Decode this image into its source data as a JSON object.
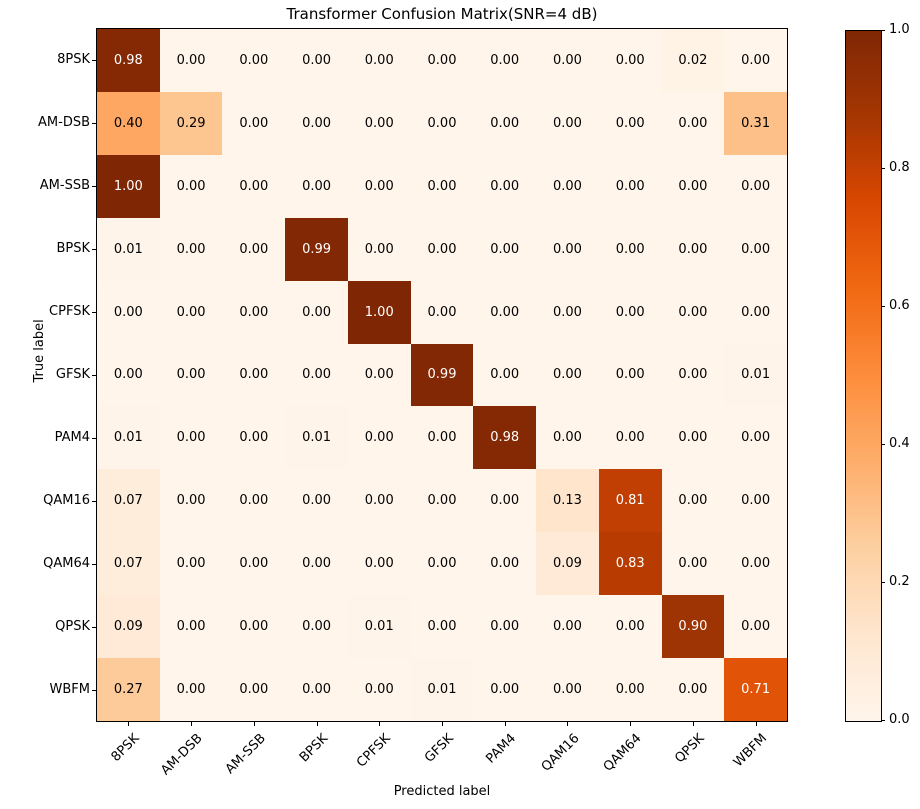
{
  "chart_data": {
    "type": "heatmap",
    "title": "Transformer Confusion Matrix(SNR=4 dB)",
    "xlabel": "Predicted label",
    "ylabel": "True label",
    "categories": [
      "8PSK",
      "AM-DSB",
      "AM-SSB",
      "BPSK",
      "CPFSK",
      "GFSK",
      "PAM4",
      "QAM16",
      "QAM64",
      "QPSK",
      "WBFM"
    ],
    "matrix": [
      [
        0.98,
        0.0,
        0.0,
        0.0,
        0.0,
        0.0,
        0.0,
        0.0,
        0.0,
        0.02,
        0.0
      ],
      [
        0.4,
        0.29,
        0.0,
        0.0,
        0.0,
        0.0,
        0.0,
        0.0,
        0.0,
        0.0,
        0.31
      ],
      [
        1.0,
        0.0,
        0.0,
        0.0,
        0.0,
        0.0,
        0.0,
        0.0,
        0.0,
        0.0,
        0.0
      ],
      [
        0.01,
        0.0,
        0.0,
        0.99,
        0.0,
        0.0,
        0.0,
        0.0,
        0.0,
        0.0,
        0.0
      ],
      [
        0.0,
        0.0,
        0.0,
        0.0,
        1.0,
        0.0,
        0.0,
        0.0,
        0.0,
        0.0,
        0.0
      ],
      [
        0.0,
        0.0,
        0.0,
        0.0,
        0.0,
        0.99,
        0.0,
        0.0,
        0.0,
        0.0,
        0.01
      ],
      [
        0.01,
        0.0,
        0.0,
        0.01,
        0.0,
        0.0,
        0.98,
        0.0,
        0.0,
        0.0,
        0.0
      ],
      [
        0.07,
        0.0,
        0.0,
        0.0,
        0.0,
        0.0,
        0.0,
        0.13,
        0.81,
        0.0,
        0.0
      ],
      [
        0.07,
        0.0,
        0.0,
        0.0,
        0.0,
        0.0,
        0.0,
        0.09,
        0.83,
        0.0,
        0.0
      ],
      [
        0.09,
        0.0,
        0.0,
        0.0,
        0.01,
        0.0,
        0.0,
        0.0,
        0.0,
        0.9,
        0.0
      ],
      [
        0.27,
        0.0,
        0.0,
        0.0,
        0.0,
        0.01,
        0.0,
        0.0,
        0.0,
        0.0,
        0.71
      ]
    ],
    "value_decimals": 2,
    "vmin": 0.0,
    "vmax": 1.0,
    "colormap": "Oranges",
    "colormap_stops": [
      "#fff5eb",
      "#fee6ce",
      "#fdd0a2",
      "#fdae6b",
      "#fd8d3c",
      "#f16913",
      "#d94801",
      "#a63603",
      "#7f2704"
    ],
    "colorbar_ticks": [
      1.0,
      0.8,
      0.6,
      0.4,
      0.2,
      0.0
    ],
    "colorbar_tick_decimals": 1,
    "annotation_color_light_bg": "#000000",
    "annotation_color_dark_bg": "#ffffff",
    "text_color_threshold": 0.5,
    "legend_position": "colorbar-right",
    "grid": false
  }
}
